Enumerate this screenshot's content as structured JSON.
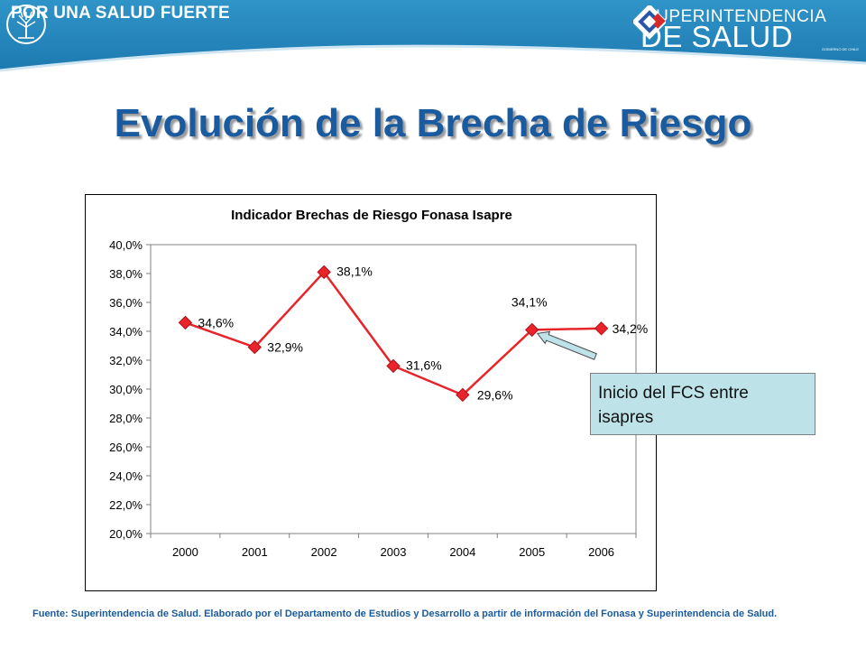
{
  "header": {
    "slogan": "POR UNA SALUD FUERTE",
    "brand_line1": "SUPERINTENDENCIA",
    "brand_line2": "DE SALUD",
    "gov_caption": "GOBIERNO DE CHILE"
  },
  "title": "Evolución de la Brecha de Riesgo",
  "chart_data": {
    "type": "line",
    "title": "Indicador Brechas de Riesgo Fonasa Isapre",
    "categories": [
      "2000",
      "2001",
      "2002",
      "2003",
      "2004",
      "2005",
      "2006"
    ],
    "series": [
      {
        "values": [
          34.6,
          32.9,
          38.1,
          31.6,
          29.6,
          34.1,
          34.2
        ]
      }
    ],
    "data_labels": [
      "34,6%",
      "32,9%",
      "38,1%",
      "31,6%",
      "29,6%",
      "34,1%",
      "34,2%"
    ],
    "y_ticks": [
      "20,0%",
      "22,0%",
      "24,0%",
      "26,0%",
      "28,0%",
      "30,0%",
      "32,0%",
      "34,0%",
      "36,0%",
      "38,0%",
      "40,0%"
    ],
    "ylim": [
      20,
      40
    ],
    "grid": false,
    "series_color": "#e8232a",
    "annotation": {
      "text": "Inicio del FCS entre isapres",
      "target_category": "2005"
    }
  },
  "footnote": "Fuente: Superintendencia de Salud. Elaborado por el Departamento de Estudios y Desarrollo a partir de información del Fonasa y Superintendencia de Salud.",
  "colors": {
    "title": "#1a5a9e",
    "header_band": "#2a8bc0",
    "callout_fill": "#bde3e8"
  }
}
